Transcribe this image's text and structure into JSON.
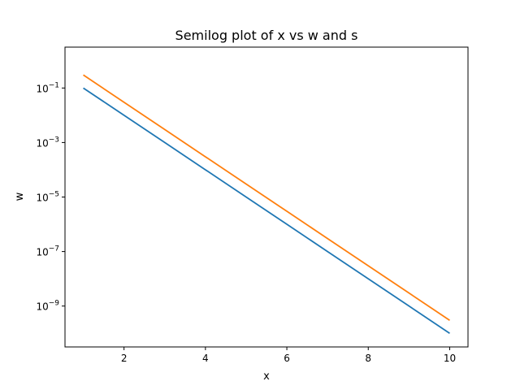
{
  "chart_data": {
    "type": "line",
    "title": "Semilog plot of x vs w and s",
    "xlabel": "x",
    "ylabel": "w",
    "yscale": "log",
    "grid": false,
    "xlim": [
      0.55,
      10.45
    ],
    "ylim_exponent": [
      -10.5,
      0.5
    ],
    "x_ticks": [
      2,
      4,
      6,
      8,
      10
    ],
    "x_tick_labels": [
      "2",
      "4",
      "6",
      "8",
      "10"
    ],
    "y_tick_exponents": [
      -1,
      -3,
      -5,
      -7,
      -9
    ],
    "y_tick_base": "10",
    "y_tick_labels": [
      "10^-1",
      "10^-3",
      "10^-5",
      "10^-7",
      "10^-9"
    ],
    "x": [
      1,
      2,
      3,
      4,
      5,
      6,
      7,
      8,
      9,
      10
    ],
    "series": [
      {
        "color": "#1f77b4",
        "values": [
          0.1,
          0.01,
          0.001,
          0.0001,
          1e-05,
          1e-06,
          1e-07,
          1e-08,
          1e-09,
          1e-10
        ]
      },
      {
        "color": "#ff7f0e",
        "values": [
          0.3,
          0.03,
          0.003,
          0.0003,
          3e-05,
          3e-06,
          3e-07,
          3e-08,
          3e-09,
          3e-10
        ]
      }
    ]
  }
}
